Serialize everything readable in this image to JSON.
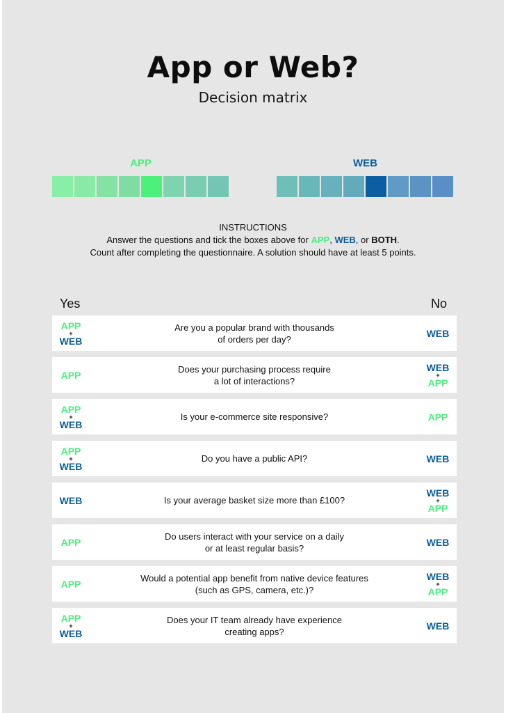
{
  "header": {
    "title": "App or Web?",
    "subtitle": "Decision matrix"
  },
  "tally": {
    "app_label": "APP",
    "web_label": "WEB",
    "app_boxes": [
      "#88efa6",
      "#89e9a5",
      "#85e1a4",
      "#7fdca3",
      "#4cf07a",
      "#7fd4b0",
      "#79cdb0",
      "#74c5b4"
    ],
    "web_boxes": [
      "#6dbfb8",
      "#69b8b9",
      "#66b1bb",
      "#63aabd",
      "#0b5ea2",
      "#5f9bc6",
      "#5b93c5",
      "#5a8ec6"
    ]
  },
  "instructions": {
    "heading": "INSTRUCTIONS",
    "line1_pre": "Answer the questions and tick the boxes above for ",
    "app": "APP",
    "comma1": ", ",
    "web": "WEB",
    "comma2": ", or ",
    "both": "BOTH",
    "period": ".",
    "line2": "Count after completing the questionnaire. A solution should have at least 5 points."
  },
  "columns": {
    "yes": "Yes",
    "no": "No"
  },
  "plus": "+",
  "colors": {
    "app": "#4dee7e",
    "web": "#0c5d99",
    "row_bg": "#ffffff",
    "page_bg": "#e6e6e6"
  },
  "rows": [
    {
      "question": "Are you a popular brand with thousands\nof orders per day?",
      "yes": [
        "APP",
        "WEB"
      ],
      "no": [
        "WEB"
      ]
    },
    {
      "question": "Does your purchasing process require\na lot of interactions?",
      "yes": [
        "APP"
      ],
      "no": [
        "WEB",
        "APP"
      ]
    },
    {
      "question": "Is your e-commerce site responsive?",
      "yes": [
        "APP",
        "WEB"
      ],
      "no": [
        "APP"
      ]
    },
    {
      "question": "Do you have a public API?",
      "yes": [
        "APP",
        "WEB"
      ],
      "no": [
        "WEB"
      ]
    },
    {
      "question": "Is your average basket size more than £100?",
      "yes": [
        "WEB"
      ],
      "no": [
        "WEB",
        "APP"
      ]
    },
    {
      "question": "Do users interact with your service on a daily\nor at least regular basis?",
      "yes": [
        "APP"
      ],
      "no": [
        "WEB"
      ]
    },
    {
      "question": "Would a potential app benefit from native device features\n(such as GPS, camera, etc.)?",
      "yes": [
        "APP"
      ],
      "no": [
        "WEB",
        "APP"
      ]
    },
    {
      "question": "Does your IT team already have experience\ncreating apps?",
      "yes": [
        "APP",
        "WEB"
      ],
      "no": [
        "WEB"
      ]
    }
  ]
}
